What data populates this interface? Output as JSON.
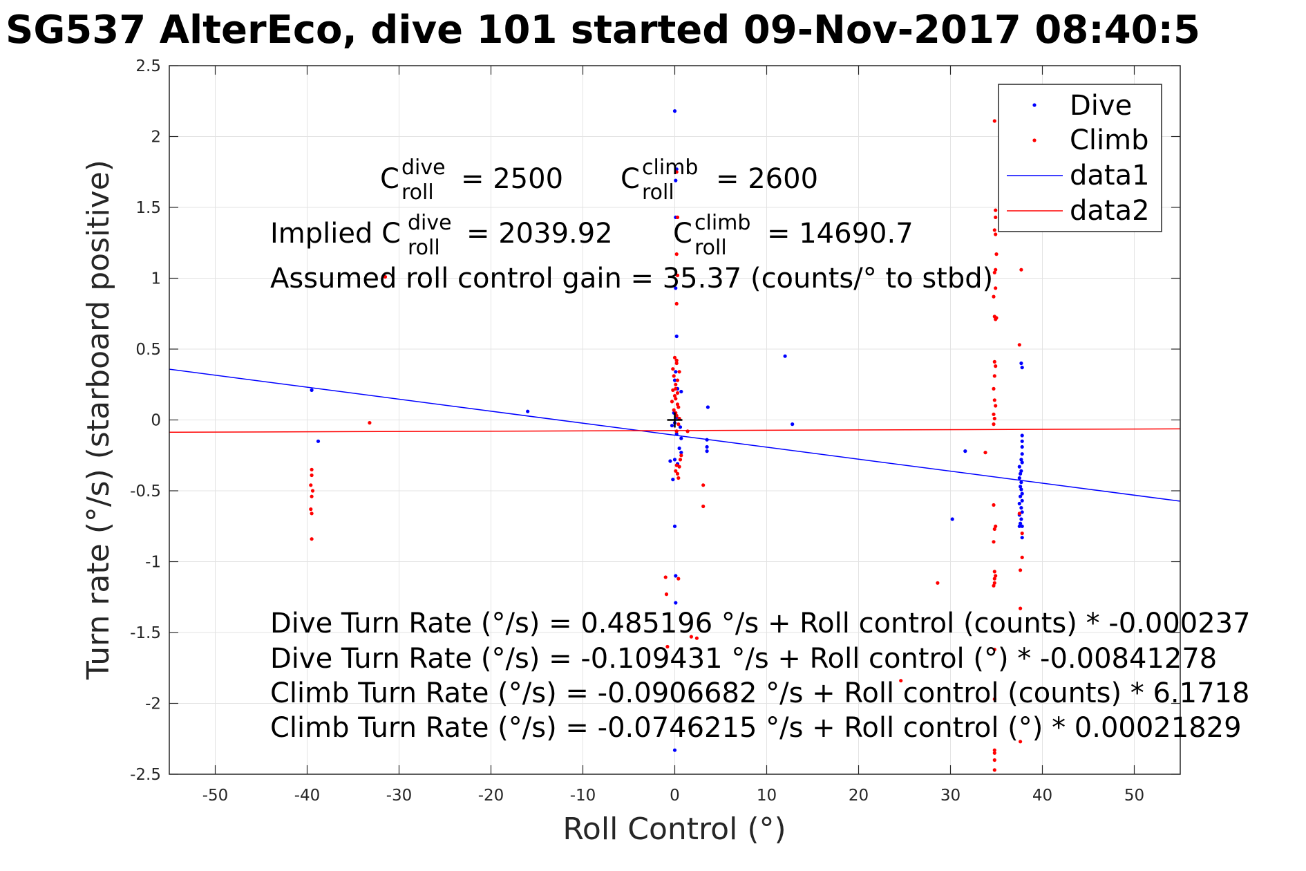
{
  "chart_data": {
    "type": "scatter",
    "title": "SG537 AlterEco, dive 101 started 09-Nov-2017 08:40:5",
    "xlabel": "Roll Control (°)",
    "ylabel": "Turn rate (°/s) (starboard positive)",
    "xlim": [
      -55,
      55
    ],
    "ylim": [
      -2.5,
      2.5
    ],
    "xticks": [
      -50,
      -40,
      -30,
      -20,
      -10,
      0,
      10,
      20,
      30,
      40,
      50
    ],
    "xtick_labels": [
      "-50",
      "-40",
      "-30",
      "-20",
      "-10",
      "0",
      "10",
      "20",
      "30",
      "40",
      "50"
    ],
    "yticks": [
      2.5,
      2,
      1.5,
      1,
      0.5,
      0,
      -0.5,
      -1,
      -1.5,
      -2,
      -2.5
    ],
    "ytick_labels": [
      "2.5",
      "2",
      "1.5",
      "1",
      "0.5",
      "0",
      "-0.5",
      "-1",
      "-1.5",
      "-2",
      "-2.5"
    ],
    "grid": true,
    "legend_position": "top-right",
    "series": [
      {
        "name": "Dive",
        "kind": "points",
        "color": "#0000ff",
        "points": [
          [
            -39.5,
            0.21
          ],
          [
            -38.8,
            -0.15
          ],
          [
            -16,
            0.06
          ],
          [
            0,
            2.18
          ],
          [
            0.1,
            1.69
          ],
          [
            0.1,
            1.43
          ],
          [
            0.2,
            1.77
          ],
          [
            0.1,
            0.93
          ],
          [
            0.2,
            0.59
          ],
          [
            0.1,
            0.34
          ],
          [
            0,
            0.28
          ],
          [
            0.3,
            0.22
          ],
          [
            -0.1,
            0.05
          ],
          [
            0.2,
            0.02
          ],
          [
            0,
            -0.02
          ],
          [
            0.6,
            -0.05
          ],
          [
            -0.3,
            -0.04
          ],
          [
            0.2,
            -0.1
          ],
          [
            0.7,
            -0.13
          ],
          [
            0.5,
            -0.2
          ],
          [
            0.7,
            -0.23
          ],
          [
            -0.5,
            -0.29
          ],
          [
            0.3,
            -0.31
          ],
          [
            0,
            -0.28
          ],
          [
            -0.2,
            -0.42
          ],
          [
            0,
            -0.75
          ],
          [
            0.1,
            -1.1
          ],
          [
            0.1,
            -1.29
          ],
          [
            0,
            -2.33
          ],
          [
            0.7,
            0.2
          ],
          [
            3.6,
            0.09
          ],
          [
            3.5,
            -0.14
          ],
          [
            3.5,
            -0.19
          ],
          [
            3.5,
            -0.22
          ],
          [
            12,
            0.45
          ],
          [
            12.8,
            -0.03
          ],
          [
            30.2,
            -0.7
          ],
          [
            31.6,
            -0.22
          ],
          [
            37.7,
            0.4
          ],
          [
            37.8,
            0.37
          ],
          [
            37.8,
            -0.11
          ],
          [
            37.8,
            -0.15
          ],
          [
            37.8,
            -0.19
          ],
          [
            37.8,
            -0.24
          ],
          [
            37.7,
            -0.28
          ],
          [
            37.8,
            -0.3
          ],
          [
            37.5,
            -0.33
          ],
          [
            37.7,
            -0.36
          ],
          [
            37.6,
            -0.38
          ],
          [
            37.5,
            -0.41
          ],
          [
            37.7,
            -0.44
          ],
          [
            37.6,
            -0.47
          ],
          [
            37.7,
            -0.49
          ],
          [
            37.8,
            -0.52
          ],
          [
            37.6,
            -0.54
          ],
          [
            37.8,
            -0.57
          ],
          [
            37.5,
            -0.59
          ],
          [
            37.7,
            -0.62
          ],
          [
            37.8,
            -0.65
          ],
          [
            37.5,
            -0.67
          ],
          [
            37.7,
            -0.7
          ],
          [
            37.6,
            -0.73
          ],
          [
            37.8,
            -0.75
          ],
          [
            37.5,
            -0.75
          ],
          [
            37.8,
            -0.83
          ]
        ]
      },
      {
        "name": "Climb",
        "kind": "points",
        "color": "#ff0000",
        "points": [
          [
            -39.5,
            -0.35
          ],
          [
            -39.5,
            -0.39
          ],
          [
            -39.6,
            -0.46
          ],
          [
            -39.4,
            -0.5
          ],
          [
            -39.5,
            -0.54
          ],
          [
            -39.6,
            -0.63
          ],
          [
            -39.5,
            -0.66
          ],
          [
            -39.5,
            -0.84
          ],
          [
            -33.2,
            -0.02
          ],
          [
            -31.5,
            1.01
          ],
          [
            0.2,
            1.75
          ],
          [
            0.3,
            1.43
          ],
          [
            0.2,
            1.17
          ],
          [
            0.3,
            1.02
          ],
          [
            0.2,
            0.82
          ],
          [
            0,
            0.44
          ],
          [
            0.2,
            0.42
          ],
          [
            0.2,
            0.4
          ],
          [
            -0.2,
            0.36
          ],
          [
            0.5,
            0.34
          ],
          [
            -0.1,
            0.31
          ],
          [
            0.3,
            0.28
          ],
          [
            0.1,
            0.25
          ],
          [
            0.1,
            0.22
          ],
          [
            -0.2,
            0.21
          ],
          [
            0.3,
            0.19
          ],
          [
            0,
            0.17
          ],
          [
            0.1,
            0.15
          ],
          [
            -0.3,
            0.13
          ],
          [
            0.3,
            0.11
          ],
          [
            0.4,
            0.09
          ],
          [
            -0.1,
            0.07
          ],
          [
            0.1,
            0.05
          ],
          [
            0.2,
            0.03
          ],
          [
            0.5,
            0.01
          ],
          [
            0.4,
            -0.03
          ],
          [
            0.2,
            -0.08
          ],
          [
            1.4,
            -0.08
          ],
          [
            0.7,
            -0.25
          ],
          [
            0.6,
            -0.28
          ],
          [
            0.2,
            -0.32
          ],
          [
            0.5,
            -0.33
          ],
          [
            0.1,
            -0.36
          ],
          [
            0.3,
            -0.38
          ],
          [
            0.4,
            -0.41
          ],
          [
            -1,
            -1.11
          ],
          [
            -0.9,
            -1.23
          ],
          [
            -0.8,
            -1.6
          ],
          [
            0.4,
            -1.12
          ],
          [
            1.8,
            -1.53
          ],
          [
            2.4,
            -1.54
          ],
          [
            3.1,
            -0.46
          ],
          [
            3.1,
            -0.61
          ],
          [
            28.6,
            -1.15
          ],
          [
            24.6,
            -1.84
          ],
          [
            33.8,
            -0.23
          ],
          [
            34.8,
            2.11
          ],
          [
            34.9,
            1.48
          ],
          [
            34.9,
            1.43
          ],
          [
            34.8,
            1.34
          ],
          [
            34.9,
            1.31
          ],
          [
            35,
            1.17
          ],
          [
            34.9,
            1.06
          ],
          [
            34.8,
            1.04
          ],
          [
            34.9,
            0.93
          ],
          [
            34.7,
            0.87
          ],
          [
            34.8,
            0.73
          ],
          [
            34.9,
            0.71
          ],
          [
            35,
            0.72
          ],
          [
            34.8,
            0.41
          ],
          [
            34.9,
            0.38
          ],
          [
            34.8,
            0.31
          ],
          [
            34.7,
            0.22
          ],
          [
            34.8,
            0.14
          ],
          [
            34.9,
            0.1
          ],
          [
            34.7,
            0.04
          ],
          [
            34.8,
            0.01
          ],
          [
            34.7,
            -0.03
          ],
          [
            34.7,
            -0.6
          ],
          [
            34.9,
            -0.75
          ],
          [
            34.8,
            -0.77
          ],
          [
            34.7,
            -0.86
          ],
          [
            34.8,
            -1.07
          ],
          [
            34.9,
            -1.1
          ],
          [
            34.8,
            -1.12
          ],
          [
            34.8,
            -1.15
          ],
          [
            34.7,
            -1.17
          ],
          [
            34.8,
            -1.62
          ],
          [
            34.8,
            -1.97
          ],
          [
            34.8,
            -2.33
          ],
          [
            34.8,
            -2.35
          ],
          [
            34.8,
            -2.4
          ],
          [
            34.8,
            -2.47
          ],
          [
            37.5,
            0.53
          ],
          [
            37.7,
            1.06
          ],
          [
            37.5,
            -0.66
          ],
          [
            37.8,
            -0.8
          ],
          [
            37.8,
            -0.97
          ],
          [
            37.6,
            -1.06
          ],
          [
            37.6,
            -1.33
          ],
          [
            37.6,
            -2.27
          ]
        ]
      },
      {
        "name": "data1",
        "kind": "line",
        "color": "#0000ff",
        "points": [
          [
            -55,
            0.358
          ],
          [
            55,
            -0.573
          ]
        ]
      },
      {
        "name": "data2",
        "kind": "line",
        "color": "#ff0000",
        "points": [
          [
            -55,
            -0.087
          ],
          [
            55,
            -0.063
          ]
        ]
      }
    ],
    "marker": {
      "x": 0,
      "y": 0,
      "symbol": "+",
      "color": "#000000"
    },
    "annotations": {
      "c_dive_base": "C",
      "c_dive_sup": "dive",
      "c_dive_sub": "roll",
      "c_dive_val": "= 2500",
      "c_climb_base": "C",
      "c_climb_sup": "climb",
      "c_climb_sub": "roll",
      "c_climb_val": "= 2600",
      "implied_prefix": "Implied C",
      "implied_dive_sup": "dive",
      "implied_dive_sub": "roll",
      "implied_dive_val": "= 2039.92",
      "implied_climb_base": "C",
      "implied_climb_sup": "climb",
      "implied_climb_sub": "roll",
      "implied_climb_val": "= 14690.7",
      "gain": "Assumed roll control gain = 35.37 (counts/° to stbd)",
      "eq1": "Dive Turn Rate (°/s) = 0.485196 °/s + Roll control (counts) * -0.000237",
      "eq2": "Dive Turn Rate (°/s) = -0.109431 °/s + Roll control (°) * -0.00841278",
      "eq3": "Climb Turn Rate (°/s) = -0.0906682 °/s + Roll control (counts) * 6.1718",
      "eq4": "Climb Turn Rate (°/s) = -0.0746215 °/s + Roll control (°) * 0.00021829"
    }
  }
}
